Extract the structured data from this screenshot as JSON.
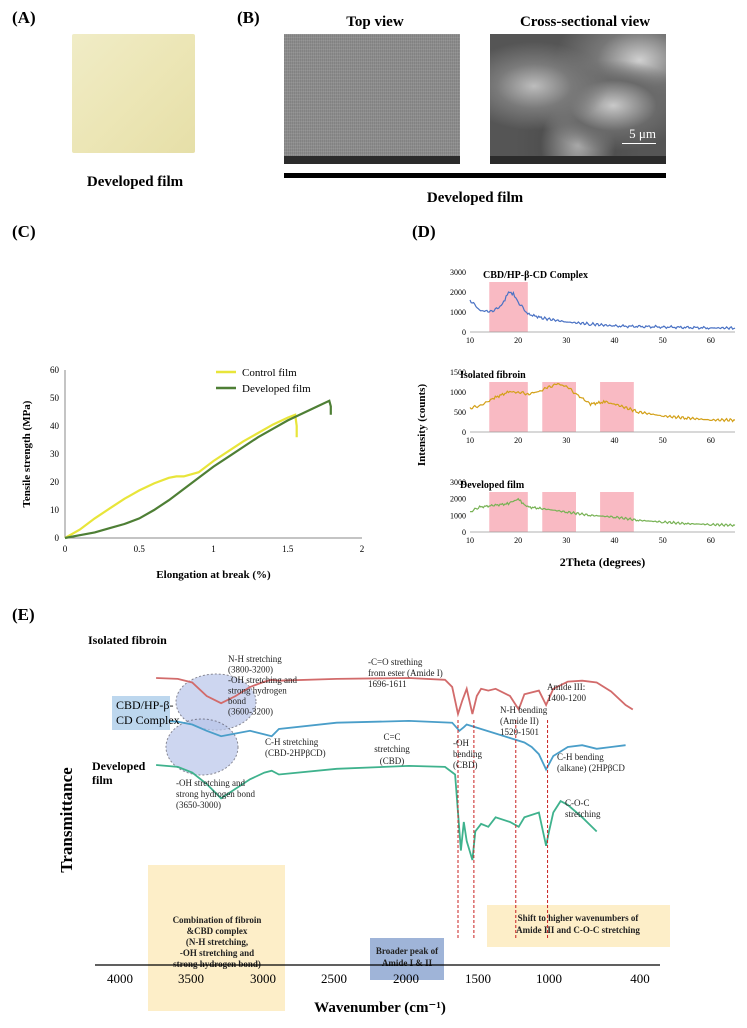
{
  "panelA": {
    "label": "(A)",
    "caption": "Developed film"
  },
  "panelB": {
    "label": "(B)",
    "top_view_title": "Top view",
    "cross_view_title": "Cross-sectional view",
    "scale_bar": "5 μm",
    "caption": "Developed film"
  },
  "panelC": {
    "label": "(C)",
    "chart_data": {
      "type": "line",
      "xlabel": "Elongation at break (%)",
      "ylabel": "Tensile strength (MPa)",
      "xlim": [
        0,
        2
      ],
      "ylim": [
        0,
        60
      ],
      "x_ticks": [
        "0",
        "0.5",
        "1",
        "1.5",
        "2"
      ],
      "y_ticks": [
        "0",
        "10",
        "20",
        "30",
        "40",
        "50",
        "60"
      ],
      "legend_position": "top-right",
      "series": [
        {
          "name": "Control film",
          "color": "#e8e53a",
          "x": [
            0,
            0.1,
            0.2,
            0.3,
            0.4,
            0.5,
            0.6,
            0.7,
            0.75,
            0.8,
            0.9,
            1.0,
            1.1,
            1.2,
            1.3,
            1.4,
            1.5,
            1.55,
            1.56,
            1.56
          ],
          "y": [
            0,
            3,
            7,
            10.5,
            14,
            17,
            19.5,
            21.5,
            22,
            22,
            23.5,
            27.5,
            31,
            34.5,
            37.5,
            40.5,
            43,
            44,
            40,
            36
          ]
        },
        {
          "name": "Developed film",
          "color": "#4e7f35",
          "x": [
            0,
            0.1,
            0.2,
            0.3,
            0.4,
            0.5,
            0.6,
            0.7,
            0.8,
            0.9,
            1.0,
            1.1,
            1.2,
            1.3,
            1.4,
            1.5,
            1.6,
            1.7,
            1.78,
            1.79,
            1.79
          ],
          "y": [
            0,
            1,
            2,
            3.5,
            5,
            7,
            10,
            13.5,
            17.5,
            21.5,
            25.5,
            29,
            32.5,
            36,
            39,
            42,
            44.5,
            47,
            49,
            47,
            44
          ]
        }
      ]
    }
  },
  "panelD": {
    "label": "(D)",
    "chart_data": {
      "type": "line",
      "xlabel": "2Theta (degrees)",
      "ylabel": "Intensity (counts)",
      "subplots": [
        {
          "title": "CBD/HP-β-CD Complex",
          "color": "#4a72c4",
          "ylim": [
            0,
            3000
          ],
          "y_ticks": [
            "0",
            "1000",
            "2000",
            "3000"
          ],
          "x_ticks": [
            "10",
            "20",
            "30",
            "40",
            "50",
            "60"
          ],
          "x": [
            10,
            12,
            14,
            16,
            17,
            18,
            19,
            20,
            22,
            25,
            30,
            35,
            40,
            50,
            60,
            65
          ],
          "y": [
            1600,
            1100,
            1000,
            1200,
            1500,
            2000,
            1900,
            1500,
            900,
            700,
            500,
            400,
            300,
            250,
            200,
            200
          ]
        },
        {
          "title": "Isolated fibroin",
          "color": "#d3a018",
          "ylim": [
            0,
            1500
          ],
          "y_ticks": [
            "0",
            "500",
            "1000",
            "1500"
          ],
          "x_ticks": [
            "10",
            "20",
            "30",
            "40",
            "50",
            "60"
          ],
          "x": [
            10,
            12,
            15,
            18,
            20,
            22,
            24,
            26,
            28,
            30,
            32,
            35,
            38,
            40,
            45,
            50,
            55,
            60,
            65
          ],
          "y": [
            600,
            650,
            850,
            1000,
            1000,
            950,
            1000,
            1100,
            1200,
            1150,
            950,
            700,
            750,
            700,
            500,
            400,
            350,
            300,
            300
          ]
        },
        {
          "title": "Developed film",
          "color": "#77b254",
          "ylim": [
            0,
            3000
          ],
          "y_ticks": [
            "0",
            "1000",
            "2000",
            "3000"
          ],
          "x_ticks": [
            "10",
            "20",
            "30",
            "40",
            "50",
            "60"
          ],
          "x": [
            10,
            12,
            15,
            18,
            20,
            21,
            22,
            25,
            30,
            35,
            40,
            45,
            50,
            55,
            60,
            65
          ],
          "y": [
            1200,
            1500,
            1600,
            1700,
            2000,
            1700,
            1500,
            1400,
            1200,
            1000,
            900,
            700,
            600,
            500,
            450,
            400
          ]
        }
      ],
      "highlight_ranges": [
        [
          14,
          22
        ],
        [
          25,
          32
        ],
        [
          37,
          44
        ]
      ],
      "highlight_color": "#f7a9b4"
    }
  },
  "panelE": {
    "label": "(E)",
    "chart_data": {
      "type": "line",
      "xlabel": "Wavenumber (cm⁻¹)",
      "ylabel": "Transmittance",
      "x_ticks": [
        "4000",
        "3500",
        "3000",
        "2500",
        "2000",
        "1500",
        "1000",
        "400"
      ],
      "xlim": [
        4000,
        400
      ],
      "series": [
        {
          "name": "Isolated fibroin",
          "color": "#d26b6b",
          "x": [
            3750,
            3600,
            3500,
            3400,
            3300,
            3200,
            3100,
            3000,
            2950,
            2900,
            2500,
            2000,
            1750,
            1700,
            1660,
            1630,
            1600,
            1560,
            1530,
            1500,
            1450,
            1400,
            1300,
            1240,
            1200,
            1100,
            1050,
            1000,
            950,
            900,
            800,
            700,
            600,
            500,
            450
          ],
          "y": [
            0,
            1,
            5,
            20,
            28,
            20,
            10,
            4,
            2,
            3,
            1,
            0,
            2,
            10,
            40,
            25,
            12,
            40,
            20,
            12,
            14,
            12,
            20,
            35,
            18,
            14,
            30,
            12,
            8,
            4,
            3,
            5,
            15,
            30,
            35
          ]
        },
        {
          "name": "CBD/HP-β-CD Complex",
          "color": "#4a9ec9",
          "x": [
            3750,
            3600,
            3500,
            3400,
            3300,
            3200,
            3100,
            3000,
            2950,
            2900,
            2500,
            2000,
            1700,
            1650,
            1620,
            1600,
            1500,
            1400,
            1300,
            1200,
            1150,
            1100,
            1050,
            1000,
            950,
            900,
            800,
            700,
            600,
            500
          ],
          "y": [
            0,
            2,
            5,
            12,
            18,
            15,
            12,
            16,
            18,
            10,
            3,
            1,
            3,
            12,
            8,
            5,
            10,
            15,
            20,
            25,
            30,
            38,
            55,
            40,
            35,
            30,
            28,
            32,
            30,
            28
          ]
        },
        {
          "name": "Developed film",
          "color": "#3fb28d",
          "x": [
            3750,
            3600,
            3500,
            3400,
            3300,
            3200,
            3100,
            3000,
            2950,
            2900,
            2500,
            2000,
            1750,
            1680,
            1640,
            1620,
            1600,
            1560,
            1540,
            1500,
            1450,
            1400,
            1300,
            1240,
            1200,
            1100,
            1050,
            1030,
            1000,
            950,
            900,
            800,
            700
          ],
          "y": [
            0,
            2,
            8,
            20,
            35,
            25,
            15,
            8,
            6,
            10,
            4,
            1,
            2,
            10,
            90,
            60,
            80,
            100,
            70,
            62,
            65,
            55,
            60,
            65,
            55,
            50,
            85,
            70,
            50,
            38,
            42,
            55,
            70
          ]
        }
      ]
    },
    "annotations": {
      "nh_stretch_top": "N-H stretching\n(3800-3200)\n-OH stretching and\nstrong hydrogen\nbond\n(3600-3200)",
      "ch_stretch": "C-H stretching\n(CBD-2HPβCD)",
      "oh_stretch_bottom": "-OH stretching and\nstrong hydrogen bond\n(3650-3000)",
      "co_ester": "-C=O strething\nfrom ester (Amide I)\n1696-1611",
      "cc_stretch": "C=C\nstretching\n(CBD)",
      "oh_bending": "-OH\nbending\n(CBD)",
      "nh_bending": "N-H bending\n(Amide II)\n1520-1501",
      "amide3": "Amide III:\n1400-1200",
      "ch_bending": "C-H bending\n(alkane) (2HPβCD",
      "coc": "C-O-C\nstretching",
      "label_fibroin": "Isolated fibroin",
      "label_complex_line1": "CBD/HP-β-",
      "label_complex_line2": "CD Complex",
      "label_developed_line1": "Developed",
      "label_developed_line2": "film",
      "box_yellow1": "Combination of fibroin\n&CBD complex\n(N-H stretching,\n-OH stretching and\nstrong hydrogen bond)",
      "box_blue": "Broader peak of\nAmide I & II",
      "box_yellow2": "Shift to higher wavenumbers of\nAmide III and C-O-C stretching"
    }
  }
}
